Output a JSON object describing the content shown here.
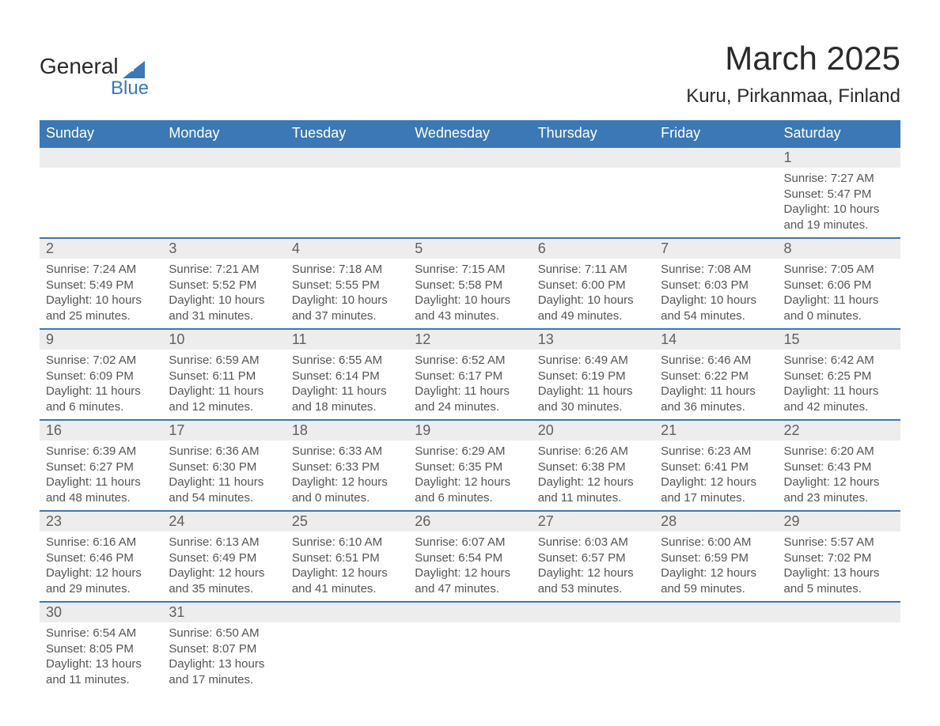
{
  "logo": {
    "text_general": "General",
    "text_blue": "Blue",
    "brand_color": "#3b78b5"
  },
  "title": "March 2025",
  "location": "Kuru, Pirkanmaa, Finland",
  "colors": {
    "header_bg": "#3b78b5",
    "header_text": "#ffffff",
    "daynum_bg": "#ededed",
    "daynum_text": "#606060",
    "body_text": "#555555",
    "row_separator": "#3b78b5"
  },
  "fonts": {
    "title_size": 42,
    "location_size": 24,
    "header_size": 18,
    "daynum_size": 18,
    "body_size": 15
  },
  "day_headers": [
    "Sunday",
    "Monday",
    "Tuesday",
    "Wednesday",
    "Thursday",
    "Friday",
    "Saturday"
  ],
  "weeks": [
    [
      null,
      null,
      null,
      null,
      null,
      null,
      {
        "n": "1",
        "sunrise": "Sunrise: 7:27 AM",
        "sunset": "Sunset: 5:47 PM",
        "daylight1": "Daylight: 10 hours",
        "daylight2": "and 19 minutes."
      }
    ],
    [
      {
        "n": "2",
        "sunrise": "Sunrise: 7:24 AM",
        "sunset": "Sunset: 5:49 PM",
        "daylight1": "Daylight: 10 hours",
        "daylight2": "and 25 minutes."
      },
      {
        "n": "3",
        "sunrise": "Sunrise: 7:21 AM",
        "sunset": "Sunset: 5:52 PM",
        "daylight1": "Daylight: 10 hours",
        "daylight2": "and 31 minutes."
      },
      {
        "n": "4",
        "sunrise": "Sunrise: 7:18 AM",
        "sunset": "Sunset: 5:55 PM",
        "daylight1": "Daylight: 10 hours",
        "daylight2": "and 37 minutes."
      },
      {
        "n": "5",
        "sunrise": "Sunrise: 7:15 AM",
        "sunset": "Sunset: 5:58 PM",
        "daylight1": "Daylight: 10 hours",
        "daylight2": "and 43 minutes."
      },
      {
        "n": "6",
        "sunrise": "Sunrise: 7:11 AM",
        "sunset": "Sunset: 6:00 PM",
        "daylight1": "Daylight: 10 hours",
        "daylight2": "and 49 minutes."
      },
      {
        "n": "7",
        "sunrise": "Sunrise: 7:08 AM",
        "sunset": "Sunset: 6:03 PM",
        "daylight1": "Daylight: 10 hours",
        "daylight2": "and 54 minutes."
      },
      {
        "n": "8",
        "sunrise": "Sunrise: 7:05 AM",
        "sunset": "Sunset: 6:06 PM",
        "daylight1": "Daylight: 11 hours",
        "daylight2": "and 0 minutes."
      }
    ],
    [
      {
        "n": "9",
        "sunrise": "Sunrise: 7:02 AM",
        "sunset": "Sunset: 6:09 PM",
        "daylight1": "Daylight: 11 hours",
        "daylight2": "and 6 minutes."
      },
      {
        "n": "10",
        "sunrise": "Sunrise: 6:59 AM",
        "sunset": "Sunset: 6:11 PM",
        "daylight1": "Daylight: 11 hours",
        "daylight2": "and 12 minutes."
      },
      {
        "n": "11",
        "sunrise": "Sunrise: 6:55 AM",
        "sunset": "Sunset: 6:14 PM",
        "daylight1": "Daylight: 11 hours",
        "daylight2": "and 18 minutes."
      },
      {
        "n": "12",
        "sunrise": "Sunrise: 6:52 AM",
        "sunset": "Sunset: 6:17 PM",
        "daylight1": "Daylight: 11 hours",
        "daylight2": "and 24 minutes."
      },
      {
        "n": "13",
        "sunrise": "Sunrise: 6:49 AM",
        "sunset": "Sunset: 6:19 PM",
        "daylight1": "Daylight: 11 hours",
        "daylight2": "and 30 minutes."
      },
      {
        "n": "14",
        "sunrise": "Sunrise: 6:46 AM",
        "sunset": "Sunset: 6:22 PM",
        "daylight1": "Daylight: 11 hours",
        "daylight2": "and 36 minutes."
      },
      {
        "n": "15",
        "sunrise": "Sunrise: 6:42 AM",
        "sunset": "Sunset: 6:25 PM",
        "daylight1": "Daylight: 11 hours",
        "daylight2": "and 42 minutes."
      }
    ],
    [
      {
        "n": "16",
        "sunrise": "Sunrise: 6:39 AM",
        "sunset": "Sunset: 6:27 PM",
        "daylight1": "Daylight: 11 hours",
        "daylight2": "and 48 minutes."
      },
      {
        "n": "17",
        "sunrise": "Sunrise: 6:36 AM",
        "sunset": "Sunset: 6:30 PM",
        "daylight1": "Daylight: 11 hours",
        "daylight2": "and 54 minutes."
      },
      {
        "n": "18",
        "sunrise": "Sunrise: 6:33 AM",
        "sunset": "Sunset: 6:33 PM",
        "daylight1": "Daylight: 12 hours",
        "daylight2": "and 0 minutes."
      },
      {
        "n": "19",
        "sunrise": "Sunrise: 6:29 AM",
        "sunset": "Sunset: 6:35 PM",
        "daylight1": "Daylight: 12 hours",
        "daylight2": "and 6 minutes."
      },
      {
        "n": "20",
        "sunrise": "Sunrise: 6:26 AM",
        "sunset": "Sunset: 6:38 PM",
        "daylight1": "Daylight: 12 hours",
        "daylight2": "and 11 minutes."
      },
      {
        "n": "21",
        "sunrise": "Sunrise: 6:23 AM",
        "sunset": "Sunset: 6:41 PM",
        "daylight1": "Daylight: 12 hours",
        "daylight2": "and 17 minutes."
      },
      {
        "n": "22",
        "sunrise": "Sunrise: 6:20 AM",
        "sunset": "Sunset: 6:43 PM",
        "daylight1": "Daylight: 12 hours",
        "daylight2": "and 23 minutes."
      }
    ],
    [
      {
        "n": "23",
        "sunrise": "Sunrise: 6:16 AM",
        "sunset": "Sunset: 6:46 PM",
        "daylight1": "Daylight: 12 hours",
        "daylight2": "and 29 minutes."
      },
      {
        "n": "24",
        "sunrise": "Sunrise: 6:13 AM",
        "sunset": "Sunset: 6:49 PM",
        "daylight1": "Daylight: 12 hours",
        "daylight2": "and 35 minutes."
      },
      {
        "n": "25",
        "sunrise": "Sunrise: 6:10 AM",
        "sunset": "Sunset: 6:51 PM",
        "daylight1": "Daylight: 12 hours",
        "daylight2": "and 41 minutes."
      },
      {
        "n": "26",
        "sunrise": "Sunrise: 6:07 AM",
        "sunset": "Sunset: 6:54 PM",
        "daylight1": "Daylight: 12 hours",
        "daylight2": "and 47 minutes."
      },
      {
        "n": "27",
        "sunrise": "Sunrise: 6:03 AM",
        "sunset": "Sunset: 6:57 PM",
        "daylight1": "Daylight: 12 hours",
        "daylight2": "and 53 minutes."
      },
      {
        "n": "28",
        "sunrise": "Sunrise: 6:00 AM",
        "sunset": "Sunset: 6:59 PM",
        "daylight1": "Daylight: 12 hours",
        "daylight2": "and 59 minutes."
      },
      {
        "n": "29",
        "sunrise": "Sunrise: 5:57 AM",
        "sunset": "Sunset: 7:02 PM",
        "daylight1": "Daylight: 13 hours",
        "daylight2": "and 5 minutes."
      }
    ],
    [
      {
        "n": "30",
        "sunrise": "Sunrise: 6:54 AM",
        "sunset": "Sunset: 8:05 PM",
        "daylight1": "Daylight: 13 hours",
        "daylight2": "and 11 minutes."
      },
      {
        "n": "31",
        "sunrise": "Sunrise: 6:50 AM",
        "sunset": "Sunset: 8:07 PM",
        "daylight1": "Daylight: 13 hours",
        "daylight2": "and 17 minutes."
      },
      null,
      null,
      null,
      null,
      null
    ]
  ]
}
